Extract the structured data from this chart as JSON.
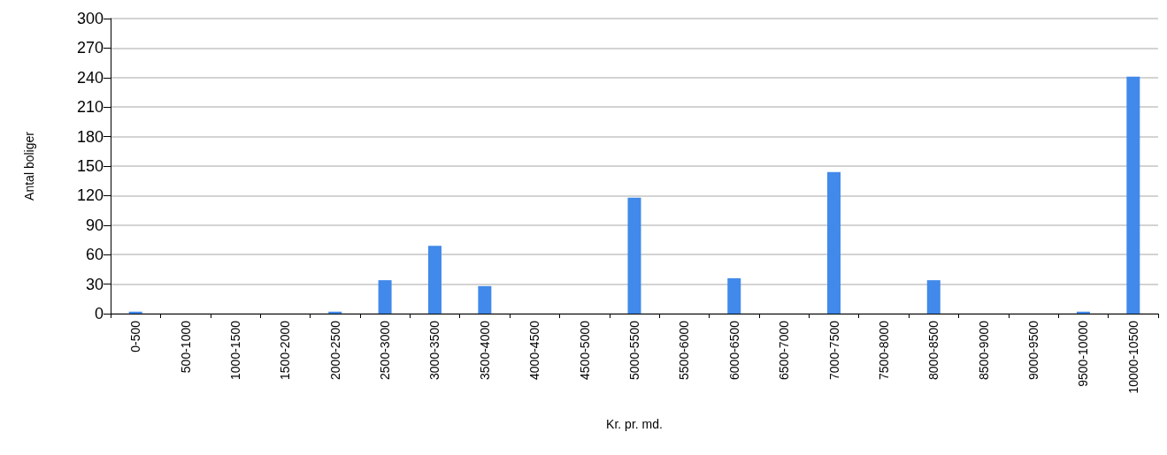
{
  "chart_data": {
    "type": "bar",
    "xlabel": "Kr. pr. md.",
    "ylabel": "Antal boliger",
    "categories": [
      "0-500",
      "500-1000",
      "1000-1500",
      "1500-2000",
      "2000-2500",
      "2500-3000",
      "3000-3500",
      "3500-4000",
      "4000-4500",
      "4500-5000",
      "5000-5500",
      "5500-6000",
      "6000-6500",
      "6500-7000",
      "7000-7500",
      "7500-8000",
      "8000-8500",
      "8500-9000",
      "9000-9500",
      "9500-10000",
      "10000-10500"
    ],
    "values": [
      2,
      0,
      0,
      0,
      2,
      34,
      69,
      28,
      0,
      0,
      118,
      0,
      36,
      0,
      144,
      0,
      34,
      0,
      0,
      2,
      241
    ],
    "color": "#4189ea",
    "ylim": [
      0,
      300
    ],
    "yticks": [
      0,
      30,
      60,
      90,
      120,
      150,
      180,
      210,
      240,
      270,
      300
    ],
    "grid": "y"
  }
}
